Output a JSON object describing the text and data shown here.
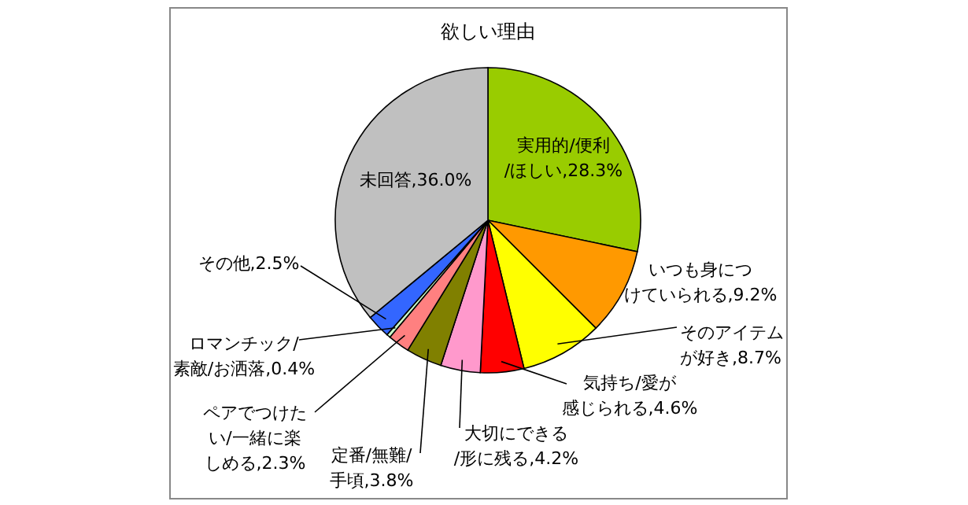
{
  "chart_data": {
    "type": "pie",
    "title": "欲しい理由",
    "categories": [
      "実用的/便利/ほしい",
      "いつも身につけていられる",
      "そのアイテムが好き",
      "気持ち/愛が感じられる",
      "大切にできる/形に残る",
      "定番/無難/手頃",
      "ペアでつけたい/一緒に楽しめる",
      "ロマンチック/素敵/お洒落",
      "その他",
      "未回答"
    ],
    "values": [
      28.3,
      9.2,
      8.7,
      4.6,
      4.2,
      3.8,
      2.3,
      0.4,
      2.5,
      36.0
    ],
    "value_labels": [
      "28.3%",
      "9.2%",
      "8.7%",
      "4.6%",
      "4.2%",
      "3.8%",
      "2.3%",
      "0.4%",
      "2.5%",
      "36.0%"
    ],
    "colors": [
      "#99cc00",
      "#ff9900",
      "#ffff00",
      "#ff0000",
      "#ff99cc",
      "#808000",
      "#ff8080",
      "#ccffcc",
      "#3366ff",
      "#c0c0c0"
    ],
    "legend": false
  }
}
